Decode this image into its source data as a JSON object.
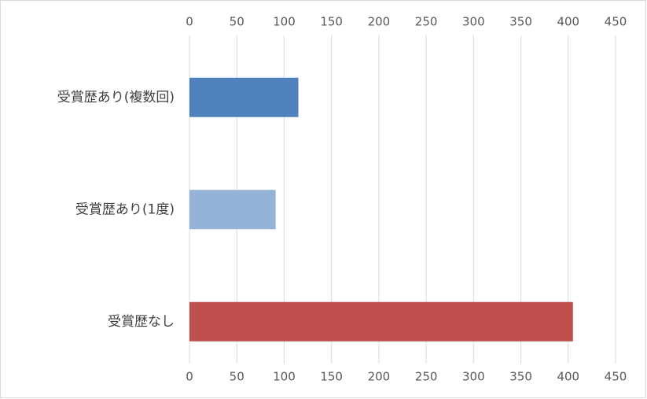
{
  "chart_data": {
    "type": "bar",
    "orientation": "horizontal",
    "categories": [
      "受賞歴あり(複数回)",
      "受賞歴あり(1度)",
      "受賞歴なし"
    ],
    "values": [
      115,
      91,
      405
    ],
    "colors": [
      "#4f81bd",
      "#95b3d7",
      "#c0504d"
    ],
    "xlim": [
      0,
      450
    ],
    "xticks": [
      0,
      50,
      100,
      150,
      200,
      250,
      300,
      350,
      400,
      450
    ],
    "grid": true
  }
}
